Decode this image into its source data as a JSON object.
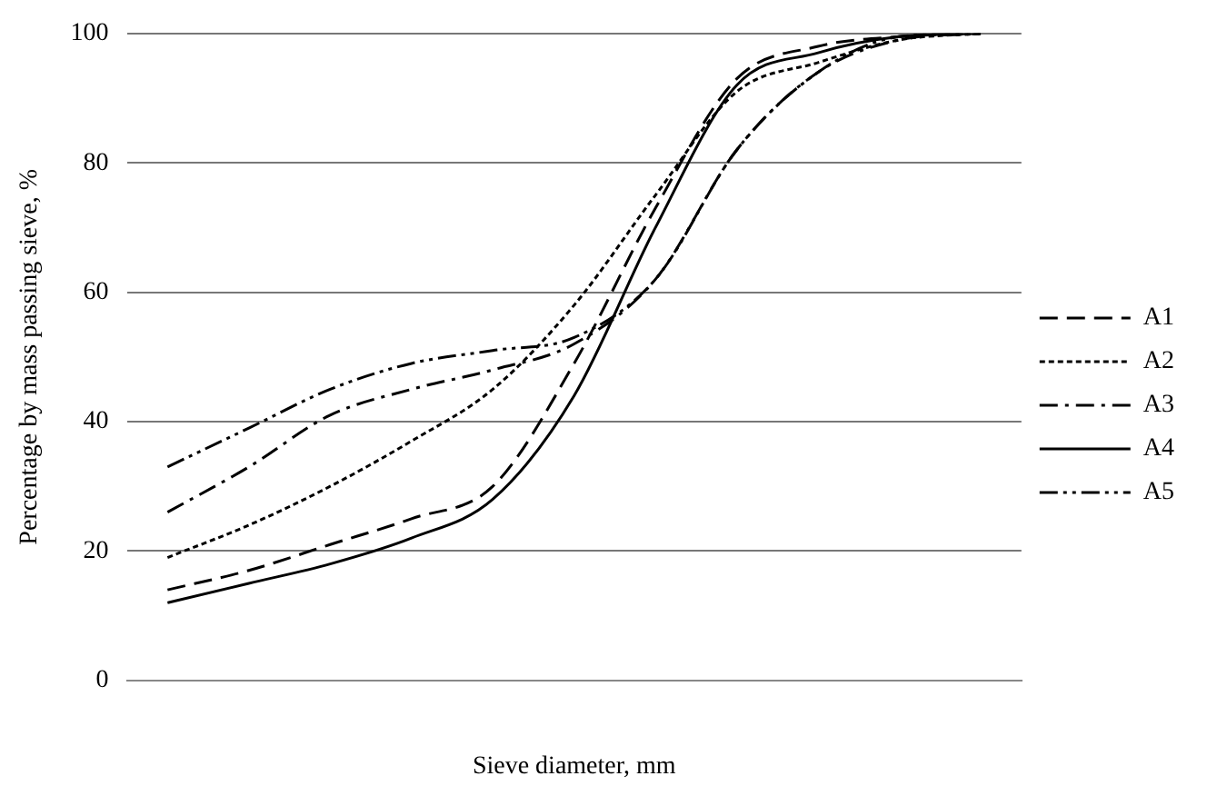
{
  "chart_data": {
    "type": "line",
    "xlabel": "Sieve diameter, mm",
    "ylabel": "Percentage by mass passing sieve, %",
    "categories": [
      null,
      null,
      null,
      null,
      null,
      null,
      null,
      null,
      null,
      null,
      null
    ],
    "ylim": [
      0,
      100
    ],
    "yticks": [
      0,
      20,
      40,
      60,
      80,
      100
    ],
    "grid": "y",
    "legend": "right",
    "marker": "none",
    "series": [
      {
        "name": "A1",
        "color": "#000000",
        "line_style": "dashed",
        "values": [
          14,
          17,
          21,
          25,
          30,
          49,
          73,
          93,
          98,
          99.5,
          100
        ]
      },
      {
        "name": "A2",
        "color": "#000000",
        "line_style": "dotted",
        "values": [
          19,
          24,
          30,
          37,
          45,
          58,
          75,
          91,
          95.5,
          99,
          100
        ]
      },
      {
        "name": "A3",
        "color": "#000000",
        "line_style": "dashdot",
        "values": [
          26,
          33,
          41,
          45,
          48,
          52,
          62,
          82,
          94,
          99,
          100
        ]
      },
      {
        "name": "A4",
        "color": "#000000",
        "line_style": "solid",
        "values": [
          12,
          15,
          18,
          22,
          28,
          44,
          70,
          92,
          97,
          99.5,
          100
        ]
      },
      {
        "name": "A5",
        "color": "#000000",
        "line_style": "dashdotdot",
        "values": [
          33,
          39,
          45,
          49,
          51,
          53,
          62,
          82,
          94,
          99.5,
          100
        ]
      }
    ]
  }
}
